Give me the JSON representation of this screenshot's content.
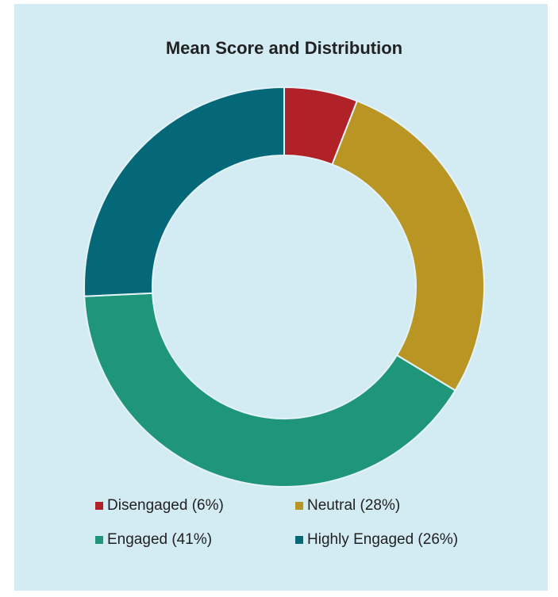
{
  "chart_data": {
    "type": "donut",
    "title": "Mean Score and Distribution",
    "categories": [
      "Disengaged (6%)",
      "Neutral (28%)",
      "Engaged (41%)",
      "Highly Engaged (26%)"
    ],
    "values": [
      6,
      28,
      41,
      26
    ],
    "colors": [
      "#b02228",
      "#b99523",
      "#1f967a",
      "#046878"
    ],
    "legend": "bottom"
  }
}
